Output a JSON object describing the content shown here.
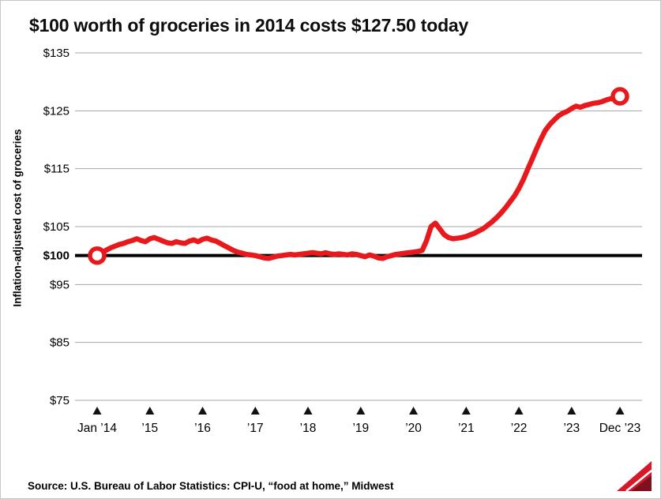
{
  "title": "$100 worth of groceries in 2014 costs $127.50 today",
  "y_axis_label": "Inflation-adjusted cost of groceries",
  "source": "Source: U.S. Bureau of Labor Statistics: CPI-U, “food at home,” Midwest",
  "icons": {
    "logo": "marketplace-logo"
  },
  "colors": {
    "line": "#e8191c",
    "baseline": "#000000",
    "grid": "#a6a6a6",
    "tick_marker": "#111111",
    "logo_bright": "#d6182a",
    "logo_dark": "#7c1220"
  },
  "chart_data": {
    "type": "line",
    "title": "$100 worth of groceries in 2014 costs $127.50 today",
    "xlabel": "",
    "ylabel": "Inflation-adjusted cost of groceries",
    "ylim": [
      75,
      135
    ],
    "baseline_value": 100,
    "grid": true,
    "legend": "none",
    "y_ticks": [
      {
        "label": "$135",
        "value": 135
      },
      {
        "label": "$125",
        "value": 125
      },
      {
        "label": "$115",
        "value": 115
      },
      {
        "label": "$105",
        "value": 105
      },
      {
        "label": "$100",
        "value": 100
      },
      {
        "label": "$95",
        "value": 95
      },
      {
        "label": "$85",
        "value": 85
      },
      {
        "label": "$75",
        "value": 75
      }
    ],
    "x_tick_labels": [
      "Jan ’14",
      "’15",
      "’16",
      "’17",
      "’18",
      "’19",
      "’20",
      "’21",
      "’22",
      "’23",
      "Dec ’23"
    ],
    "x_tick_indices": [
      0,
      12,
      24,
      36,
      48,
      60,
      72,
      84,
      96,
      108,
      119
    ],
    "endpoints": {
      "start_value": 100,
      "end_value": 127.5
    },
    "series": [
      {
        "name": "Inflation-adjusted cost of groceries (Jan 2014 – Dec 2023, monthly)",
        "values": [
          100.0,
          100.4,
          100.9,
          101.3,
          101.6,
          101.9,
          102.1,
          102.4,
          102.6,
          102.9,
          102.6,
          102.4,
          102.9,
          103.1,
          102.8,
          102.5,
          102.2,
          102.1,
          102.4,
          102.2,
          102.1,
          102.5,
          102.7,
          102.4,
          102.8,
          103.0,
          102.7,
          102.5,
          102.1,
          101.7,
          101.3,
          100.9,
          100.6,
          100.4,
          100.2,
          100.1,
          100.0,
          99.8,
          99.6,
          99.5,
          99.7,
          99.9,
          100.0,
          100.1,
          100.2,
          100.1,
          100.2,
          100.3,
          100.4,
          100.5,
          100.4,
          100.3,
          100.5,
          100.3,
          100.2,
          100.3,
          100.2,
          100.1,
          100.3,
          100.2,
          100.0,
          99.8,
          100.1,
          99.9,
          99.6,
          99.5,
          99.8,
          100.0,
          100.2,
          100.3,
          100.4,
          100.5,
          100.6,
          100.7,
          100.9,
          102.6,
          105.0,
          105.6,
          104.6,
          103.6,
          103.1,
          102.9,
          103.0,
          103.1,
          103.3,
          103.6,
          103.9,
          104.3,
          104.7,
          105.3,
          105.9,
          106.6,
          107.4,
          108.3,
          109.3,
          110.3,
          111.6,
          113.1,
          114.9,
          116.6,
          118.4,
          120.1,
          121.6,
          122.6,
          123.4,
          124.1,
          124.6,
          124.9,
          125.4,
          125.8,
          125.6,
          125.9,
          126.1,
          126.3,
          126.4,
          126.6,
          126.9,
          127.1,
          126.9,
          127.5
        ]
      }
    ]
  }
}
